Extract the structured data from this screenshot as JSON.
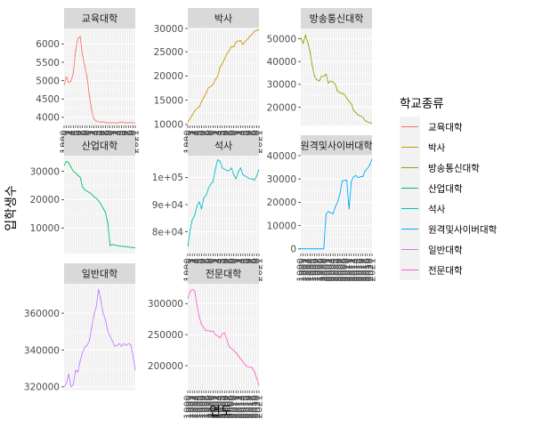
{
  "chart_data": {
    "type": "line",
    "xlabel": "연도",
    "ylabel": "입학생수",
    "legend": {
      "title": "학교종류",
      "position": "right"
    },
    "x": [
      1990,
      1991,
      1992,
      1993,
      1994,
      1995,
      1996,
      1997,
      1998,
      1999,
      2000,
      2001,
      2002,
      2003,
      2004,
      2005,
      2006,
      2007,
      2008,
      2009,
      2010,
      2011,
      2012,
      2013,
      2014,
      2015,
      2016,
      2017,
      2018,
      2019,
      2020,
      2021
    ],
    "x_tick_labels": [
      "1990",
      "1991",
      "1992",
      "1993",
      "1994",
      "1995",
      "1996",
      "1997",
      "1998",
      "1999",
      "2000",
      "2001",
      "2002",
      "2003",
      "2004",
      "2005",
      "2006",
      "2007",
      "2008",
      "2009",
      "2010",
      "2011",
      "2012",
      "2013",
      "2014",
      "2015",
      "2016",
      "2017",
      "2018",
      "2019",
      "2020",
      "2021"
    ],
    "panels": [
      {
        "name": "교육대학",
        "color": "#F8766D",
        "ylim": [
          3780,
          6420
        ],
        "yticks": [
          4000,
          4500,
          5000,
          5500,
          6000
        ],
        "ytick_labels": [
          "4000",
          "4500",
          "5000",
          "5500",
          "6000"
        ],
        "values": [
          4880,
          5100,
          4950,
          4980,
          5200,
          5800,
          6150,
          6200,
          5700,
          5400,
          5100,
          4600,
          4200,
          3950,
          3900,
          3880,
          3870,
          3880,
          3860,
          3850,
          3855,
          3860,
          3850,
          3845,
          3860,
          3870,
          3860,
          3850,
          3855,
          3860,
          3850,
          3845
        ]
      },
      {
        "name": "박사",
        "color": "#CD9600",
        "ylim": [
          9800,
          29800
        ],
        "yticks": [
          10000,
          15000,
          20000,
          25000
        ],
        "ytick_labels": [
          "10000",
          "15000",
          "20000",
          "25000"
        ],
        "y_extra_gridlines": [
          30000
        ],
        "y_extra_tick_labels": [
          "30000"
        ],
        "values": [
          10500,
          11200,
          12000,
          12800,
          13300,
          13600,
          14700,
          15600,
          16500,
          17600,
          17800,
          18300,
          19300,
          19900,
          21800,
          22500,
          23500,
          24600,
          25200,
          26100,
          26000,
          27000,
          27200,
          27300,
          26500,
          27200,
          27500,
          28200,
          28600,
          29200,
          29400,
          29600
        ]
      },
      {
        "name": "방송통신대학",
        "color": "#7CAE00",
        "ylim": [
          12000,
          54500
        ],
        "yticks": [
          20000,
          30000,
          40000,
          50000
        ],
        "ytick_labels": [
          "20000",
          "30000",
          "40000",
          "50000"
        ],
        "values": [
          50500,
          48000,
          51500,
          48500,
          44500,
          38000,
          33500,
          32000,
          31500,
          33500,
          33500,
          34500,
          30500,
          31500,
          31000,
          30000,
          27000,
          26500,
          26000,
          25500,
          24000,
          22500,
          21500,
          18500,
          17500,
          16500,
          16200,
          15500,
          14200,
          13500,
          13200,
          13000
        ]
      },
      {
        "name": "산업대학",
        "color": "#00BE67",
        "ylim": [
          1000,
          35500
        ],
        "yticks": [
          10000,
          20000,
          30000
        ],
        "ytick_labels": [
          "10000",
          "20000",
          "30000"
        ],
        "values": [
          32000,
          33500,
          33000,
          31500,
          30000,
          29500,
          28500,
          28000,
          24500,
          23500,
          23000,
          22500,
          22000,
          21000,
          20500,
          19500,
          18500,
          17000,
          15500,
          12000,
          3800,
          4200,
          4000,
          3800,
          3700,
          3600,
          3500,
          3400,
          3300,
          3200,
          3100,
          3000
        ]
      },
      {
        "name": "석사",
        "color": "#00BFC4",
        "ylim": [
          72000,
          108000
        ],
        "yticks": [
          80000,
          90000,
          100000
        ],
        "ytick_labels": [
          "8e+04",
          "9e+04",
          "1e+05"
        ],
        "values": [
          74500,
          80500,
          84500,
          86000,
          89500,
          91000,
          88500,
          92500,
          93500,
          96000,
          97500,
          98500,
          103000,
          106500,
          106000,
          103500,
          103000,
          102500,
          102500,
          103500,
          101000,
          99500,
          102000,
          103500,
          101000,
          100500,
          100000,
          99500,
          99500,
          99000,
          100500,
          103000
        ]
      },
      {
        "name": "원격및사이버대학",
        "color": "#00A9FF",
        "ylim": [
          -2000,
          40000
        ],
        "yticks": [
          0,
          10000,
          20000,
          30000
        ],
        "ytick_labels": [
          "0",
          "10000",
          "20000",
          "30000"
        ],
        "y_extra_gridlines": [
          40000
        ],
        "y_extra_tick_labels": [
          "40000"
        ],
        "values": [
          0,
          0,
          0,
          0,
          0,
          0,
          0,
          0,
          0,
          0,
          0,
          15000,
          16000,
          15500,
          15000,
          18000,
          20000,
          23500,
          29000,
          29500,
          29500,
          17000,
          29000,
          31000,
          31500,
          30500,
          31000,
          31000,
          33500,
          34500,
          36000,
          38500
        ]
      },
      {
        "name": "일반대학",
        "color": "#C77CFF",
        "ylim": [
          318000,
          376000
        ],
        "yticks": [
          320000,
          340000,
          360000
        ],
        "ytick_labels": [
          "320000",
          "340000",
          "360000"
        ],
        "values": [
          320000,
          322000,
          327000,
          320000,
          321000,
          329000,
          328000,
          334000,
          338500,
          341500,
          342500,
          345000,
          352000,
          359000,
          363500,
          373000,
          367000,
          360000,
          356500,
          350500,
          347500,
          345000,
          342000,
          342500,
          343500,
          342000,
          343500,
          342500,
          343500,
          343000,
          337000,
          329000
        ]
      },
      {
        "name": "전문대학",
        "color": "#FF61CC",
        "ylim": [
          160000,
          332000
        ],
        "yticks": [
          200000,
          250000,
          300000
        ],
        "ytick_labels": [
          "200000",
          "250000",
          "300000"
        ],
        "values": [
          308000,
          319500,
          323000,
          320500,
          298000,
          278000,
          266500,
          261000,
          256000,
          257000,
          255000,
          256000,
          250000,
          248000,
          245000,
          251000,
          253000,
          242000,
          231000,
          227500,
          224500,
          221000,
          216000,
          211000,
          206500,
          201000,
          198500,
          198000,
          197000,
          190000,
          180000,
          168000
        ]
      }
    ]
  }
}
